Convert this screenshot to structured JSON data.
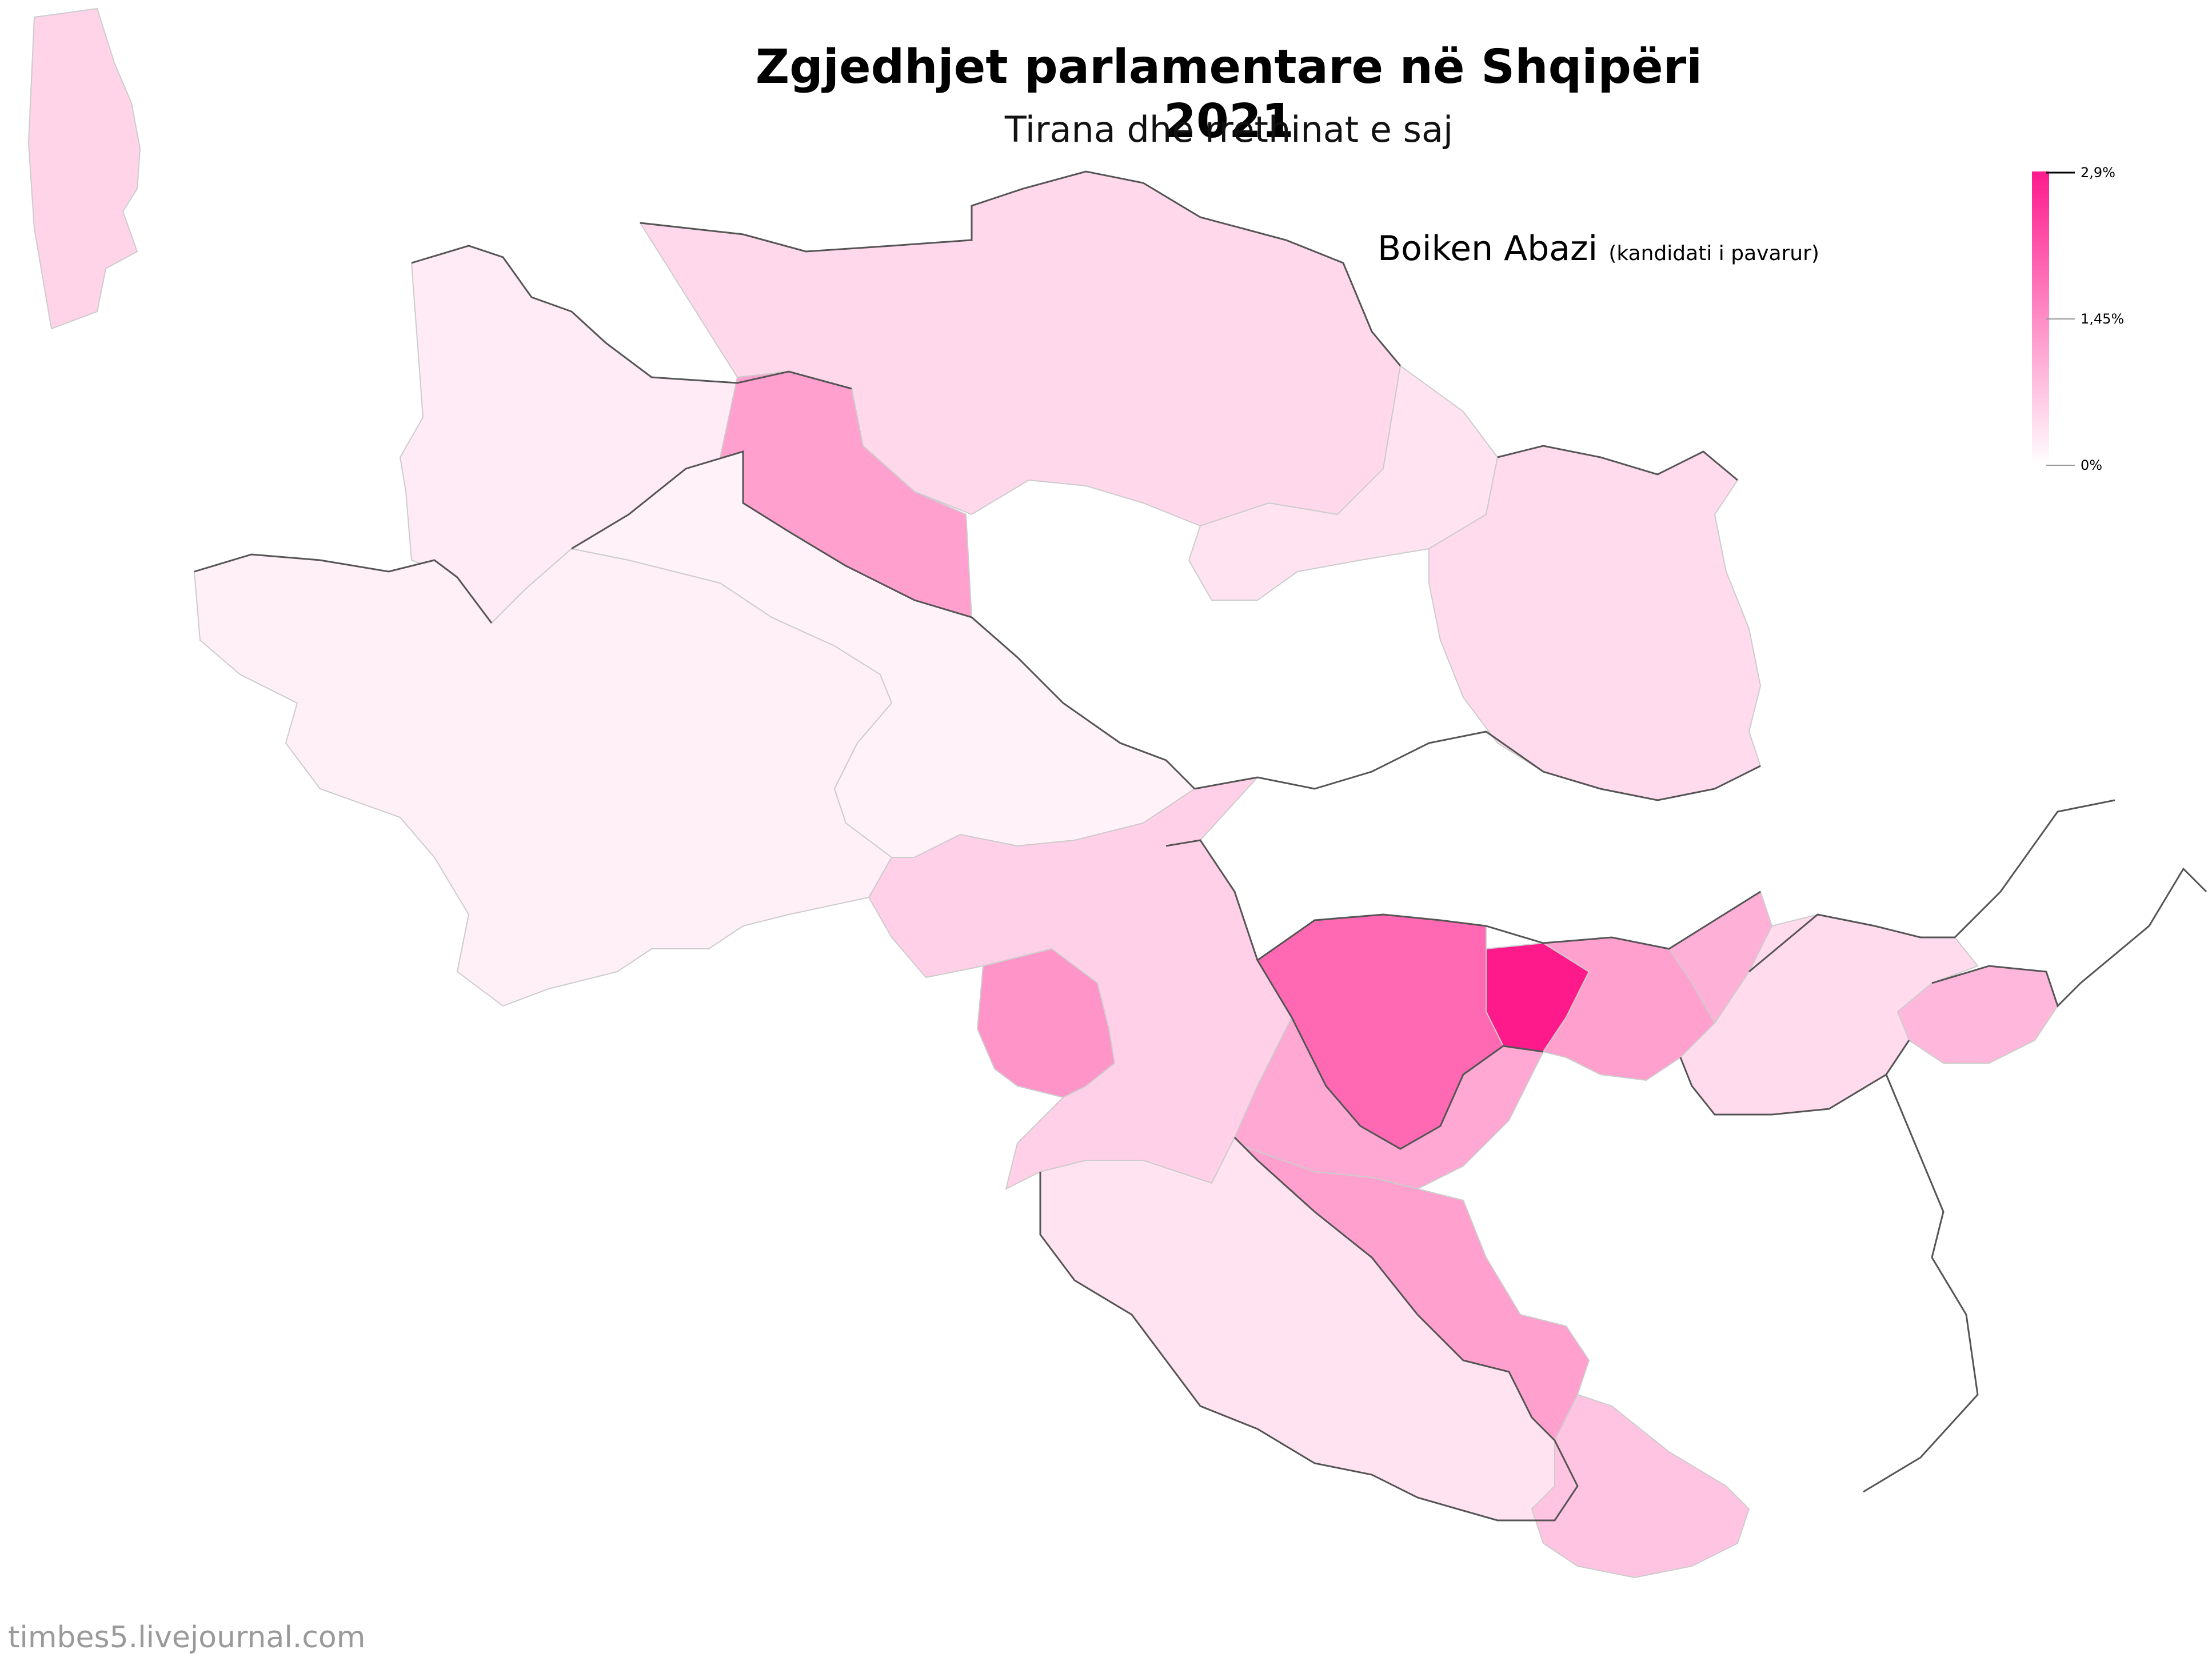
{
  "title": "Zgjedhjet parlamentare në Shqipëri 2021",
  "subtitle": "Tirana dhe rrethinat e saj",
  "candidate": {
    "name": "Boiken Abazi",
    "note": "(kandidati i pavarur)"
  },
  "legend": {
    "max_label": "2,9%",
    "mid_label": "1,45%",
    "min_label": "0%",
    "max_value": 2.9,
    "colors": {
      "high": "#ff1a8c",
      "low": "#ffffff",
      "boundary": "#555555",
      "inner_border": "#cccccc"
    }
  },
  "credit": "timbes5.livejournal.com",
  "units": [
    {
      "id": "northwest-strip",
      "share": 0.55
    },
    {
      "id": "north-west-large",
      "share": 0.25
    },
    {
      "id": "north-diagonal-zone",
      "share": 1.2
    },
    {
      "id": "north-central",
      "share": 0.5
    },
    {
      "id": "north-east-upper",
      "share": 0.35
    },
    {
      "id": "west-large",
      "share": 0.2
    },
    {
      "id": "west-center",
      "share": 0.15
    },
    {
      "id": "southwest-pink",
      "share": 1.35
    },
    {
      "id": "south-west-belt",
      "share": 0.6
    },
    {
      "id": "center-core",
      "share": 2.9
    },
    {
      "id": "center-ring",
      "share": 1.9
    },
    {
      "id": "center-east",
      "share": 1.2
    },
    {
      "id": "south-belt",
      "share": 1.1
    },
    {
      "id": "south-corridor",
      "share": 1.2
    },
    {
      "id": "east-wedge",
      "share": 1.0
    },
    {
      "id": "far-east-block",
      "share": 0.9
    },
    {
      "id": "south-large",
      "share": 0.35
    },
    {
      "id": "southeast-lobe",
      "share": 0.75
    },
    {
      "id": "east-center",
      "share": 0.45
    },
    {
      "id": "north-east-mid",
      "share": 0.45
    }
  ]
}
